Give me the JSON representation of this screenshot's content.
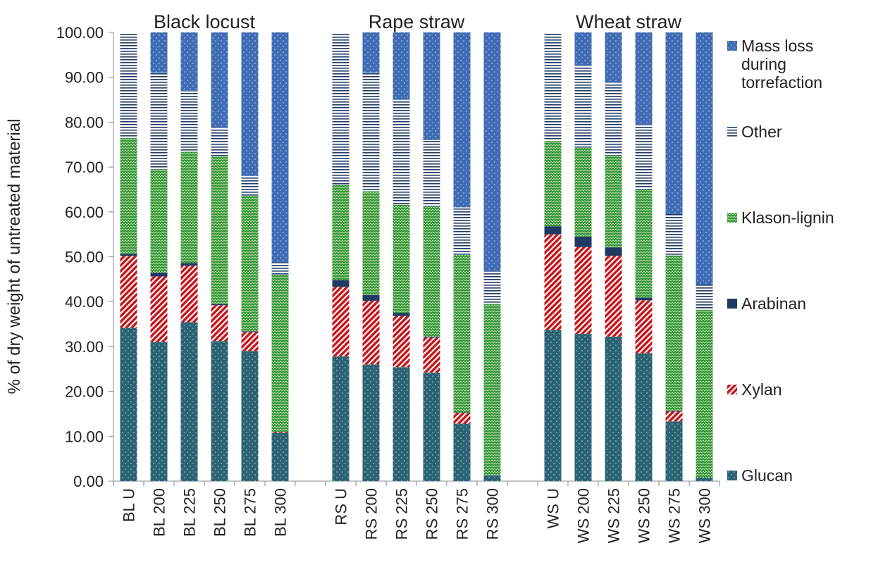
{
  "chart_data": {
    "type": "bar",
    "stacked": true,
    "y_label": "% of dry weight of untreated material",
    "annotations": [
      "Black locust",
      "Rape straw",
      "Wheat straw"
    ],
    "categories": [
      "BL U",
      "BL 200",
      "BL 225",
      "BL 250",
      "BL 275",
      "BL 300",
      null,
      "RS U",
      "RS 200",
      "RS 225",
      "RS 250",
      "RS 275",
      "RS 300",
      null,
      "WS U",
      "WS 200",
      "WS 225",
      "WS 250",
      "WS 275",
      "WS 300"
    ],
    "ylim": [
      0,
      100
    ],
    "yticks": [
      {
        "value": 0,
        "label": "0.00"
      },
      {
        "value": 10,
        "label": "10.00"
      },
      {
        "value": 20,
        "label": "20.00"
      },
      {
        "value": 30,
        "label": "30.00"
      },
      {
        "value": 40,
        "label": "40.00"
      },
      {
        "value": 50,
        "label": "50.00"
      },
      {
        "value": 60,
        "label": "60.00"
      },
      {
        "value": 70,
        "label": "70.00"
      },
      {
        "value": 80,
        "label": "80.00"
      },
      {
        "value": 90,
        "label": "90.00"
      },
      {
        "value": 100,
        "label": "100.00"
      }
    ],
    "series": [
      {
        "name": "Glucan",
        "color": "#2a6373",
        "values": [
          34.2,
          31.0,
          35.4,
          31.2,
          29.0,
          10.8,
          null,
          27.8,
          26.0,
          25.4,
          24.2,
          12.8,
          1.3,
          null,
          33.7,
          32.8,
          32.2,
          28.5,
          13.3,
          0.8
        ]
      },
      {
        "name": "Xylan",
        "color": "#c8161d",
        "values": [
          16.0,
          14.6,
          12.6,
          8.0,
          4.2,
          0.2,
          null,
          15.5,
          14.2,
          11.4,
          7.8,
          2.4,
          0,
          null,
          21.3,
          19.4,
          18.0,
          11.8,
          2.2,
          0
        ]
      },
      {
        "name": "Arabinan",
        "color": "#1f3a63",
        "values": [
          0.4,
          0.9,
          0.6,
          0.3,
          0.2,
          0,
          null,
          1.5,
          1.3,
          0.7,
          0.2,
          0.1,
          0,
          null,
          1.8,
          2.3,
          1.9,
          0.6,
          0.2,
          0
        ]
      },
      {
        "name": "Klason-lignin",
        "color": "#2f9133",
        "values": [
          25.9,
          23.0,
          24.8,
          32.8,
          30.2,
          35.0,
          null,
          21.2,
          23.1,
          24.1,
          29.0,
          35.1,
          38.2,
          null,
          19.0,
          19.8,
          20.5,
          24.1,
          34.6,
          37.4
        ]
      },
      {
        "name": "Other",
        "color": "#1f3a63",
        "values": [
          23.5,
          21.5,
          13.6,
          6.5,
          4.4,
          2.8,
          null,
          34.0,
          26.4,
          23.4,
          14.8,
          10.6,
          7.3,
          null,
          24.2,
          18.3,
          16.2,
          14.5,
          9.2,
          5.6
        ]
      },
      {
        "name": "Mass loss during torrefaction",
        "color": "#3f6cb4",
        "values": [
          0,
          9.0,
          13.0,
          21.2,
          32.0,
          51.2,
          null,
          0,
          9.0,
          15.0,
          24.0,
          39.0,
          53.2,
          null,
          0,
          7.4,
          11.2,
          20.5,
          40.5,
          56.2
        ]
      }
    ]
  }
}
